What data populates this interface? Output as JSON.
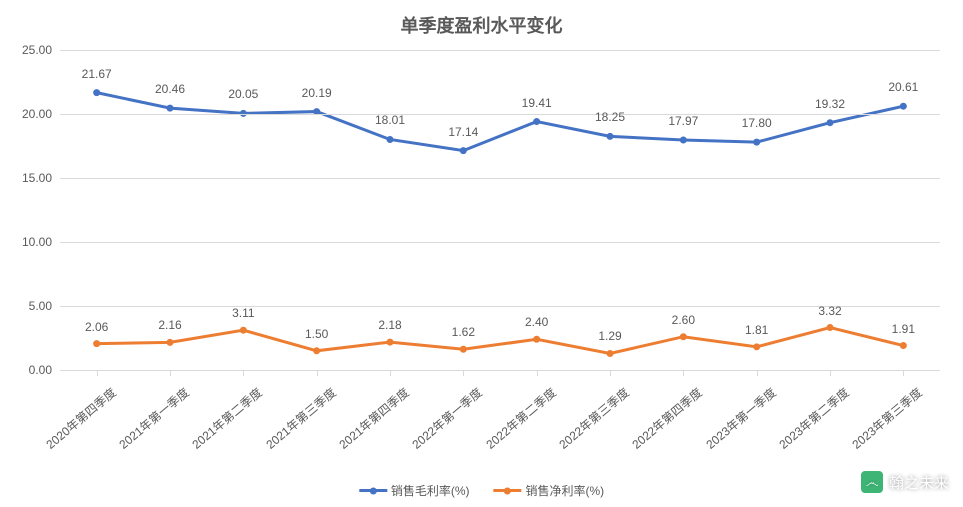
{
  "chart": {
    "type": "line",
    "title": "单季度盈利水平变化",
    "title_fontsize": 18,
    "background_color": "#ffffff",
    "grid_color": "#d9d9d9",
    "text_color": "#595959",
    "categories": [
      "2020年第四季度",
      "2021年第一季度",
      "2021年第二季度",
      "2021年第三季度",
      "2021年第四季度",
      "2022年第一季度",
      "2022年第二季度",
      "2022年第三季度",
      "2022年第四季度",
      "2023年第一季度",
      "2023年第二季度",
      "2023年第三季度"
    ],
    "ylim": [
      0,
      25
    ],
    "ytick_step": 5,
    "ytick_labels": [
      "0.00",
      "5.00",
      "10.00",
      "15.00",
      "20.00",
      "25.00"
    ],
    "series": [
      {
        "name": "销售毛利率(%)",
        "color": "#4472c4",
        "line_width": 3,
        "marker": "circle",
        "marker_size": 7,
        "values": [
          21.67,
          20.46,
          20.05,
          20.19,
          18.01,
          17.14,
          19.41,
          18.25,
          17.97,
          17.8,
          19.32,
          20.61
        ],
        "labels": [
          "21.67",
          "20.46",
          "20.05",
          "20.19",
          "18.01",
          "17.14",
          "19.41",
          "18.25",
          "17.97",
          "17.80",
          "19.32",
          "20.61"
        ],
        "label_offset_y": -12
      },
      {
        "name": "销售净利率(%)",
        "color": "#ed7d31",
        "line_width": 3,
        "marker": "circle",
        "marker_size": 7,
        "values": [
          2.06,
          2.16,
          3.11,
          1.5,
          2.18,
          1.62,
          2.4,
          1.29,
          2.6,
          1.81,
          3.32,
          1.91
        ],
        "labels": [
          "2.06",
          "2.16",
          "3.11",
          "1.50",
          "2.18",
          "1.62",
          "2.40",
          "1.29",
          "2.60",
          "1.81",
          "3.32",
          "1.91"
        ],
        "label_offset_y": -10
      }
    ],
    "legend_position": "bottom",
    "xlabel_rotation": -40,
    "label_fontsize": 12
  },
  "watermark": {
    "text": "翰之未来",
    "icon_glyph": "෴"
  }
}
